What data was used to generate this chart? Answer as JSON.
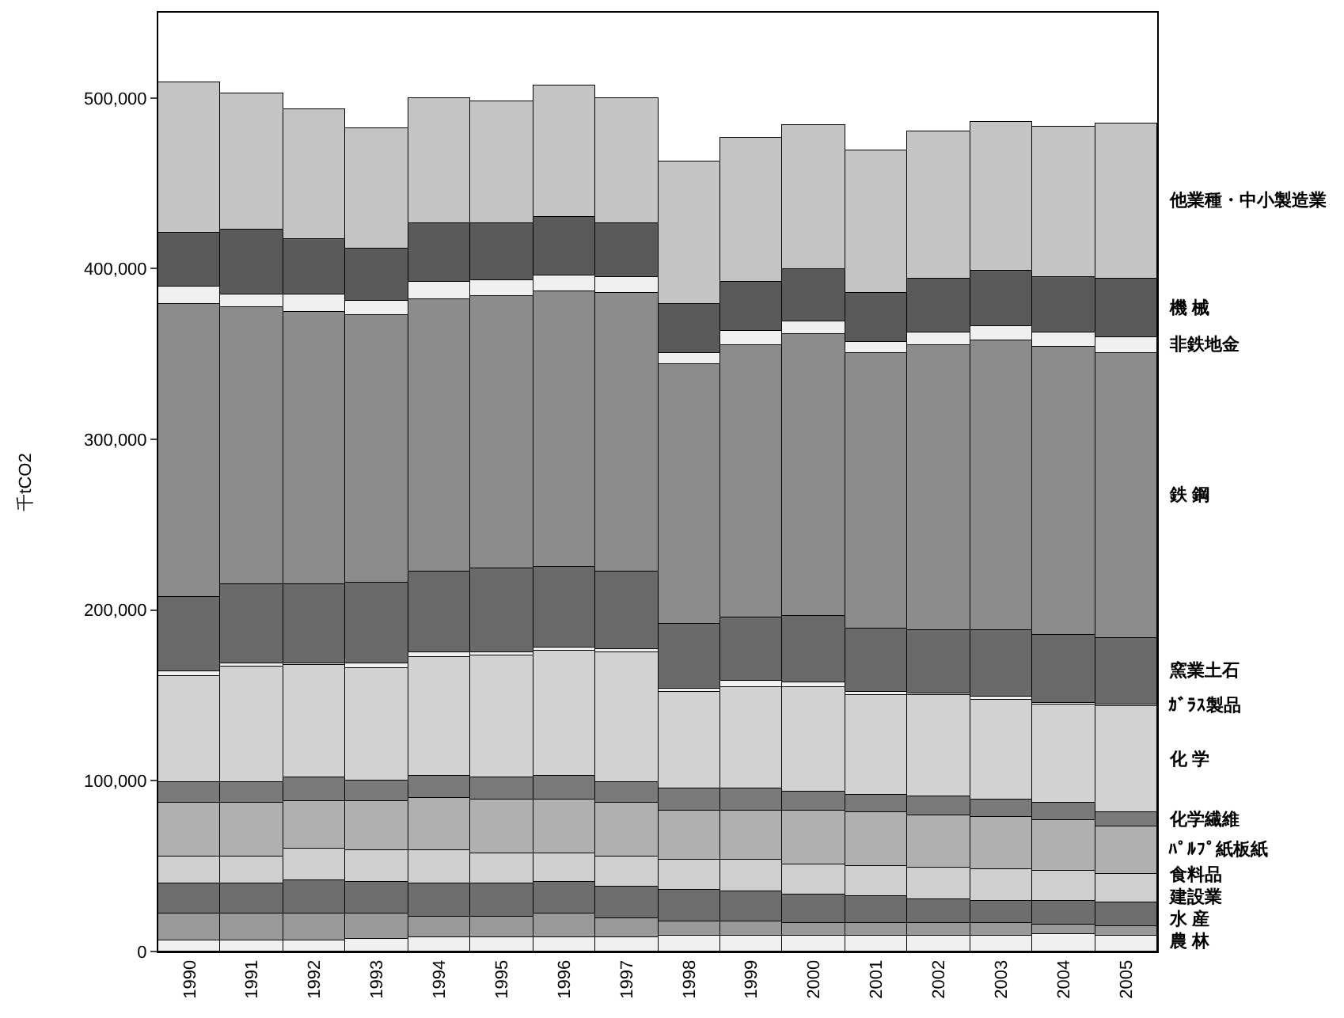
{
  "chart_data": {
    "type": "bar",
    "stacked": true,
    "ylabel": "千tCO2",
    "categories": [
      "1990",
      "1991",
      "1992",
      "1993",
      "1994",
      "1995",
      "1996",
      "1997",
      "1998",
      "1999",
      "2000",
      "2001",
      "2002",
      "2003",
      "2004",
      "2005"
    ],
    "ylim": [
      0,
      550000
    ],
    "yticks": [
      {
        "value": 0,
        "label": "0"
      },
      {
        "value": 100000,
        "label": "100,000"
      },
      {
        "value": 200000,
        "label": "200,000"
      },
      {
        "value": 300000,
        "label": "300,000"
      },
      {
        "value": 400000,
        "label": "400,000"
      },
      {
        "value": 500000,
        "label": "500,000"
      }
    ],
    "series": [
      {
        "name": "農 林",
        "color": "#f0f0f0",
        "values": [
          6500,
          6500,
          6500,
          7000,
          8000,
          8000,
          8000,
          8000,
          9500,
          9500,
          9500,
          9500,
          9500,
          9500,
          10000,
          9500
        ]
      },
      {
        "name": "水 産",
        "color": "#999999",
        "values": [
          15500,
          15500,
          16000,
          15000,
          12000,
          12000,
          14000,
          11500,
          8500,
          8500,
          7500,
          7000,
          7000,
          7000,
          6000,
          5000
        ]
      },
      {
        "name": "建設業",
        "color": "#6e6e6e",
        "values": [
          17500,
          17500,
          19000,
          19000,
          19500,
          19500,
          19000,
          18500,
          18500,
          17000,
          16000,
          16000,
          14500,
          13500,
          13500,
          14000
        ]
      },
      {
        "name": "食料品",
        "color": "#cfcfcf",
        "values": [
          16000,
          16000,
          18500,
          18000,
          19500,
          18000,
          16500,
          17500,
          17000,
          18500,
          18000,
          18000,
          18000,
          18500,
          17500,
          17000
        ]
      },
      {
        "name": "ﾊﾟﾙﾌﾟ紙板紙",
        "color": "#b0b0b0",
        "values": [
          32000,
          32000,
          28000,
          29500,
          31000,
          32000,
          32000,
          32000,
          29500,
          29500,
          31500,
          31000,
          31000,
          30000,
          30000,
          28000
        ]
      },
      {
        "name": "化学繊維",
        "color": "#7a7a7a",
        "values": [
          12000,
          12000,
          14000,
          11500,
          12500,
          12500,
          13500,
          12000,
          12500,
          12500,
          11500,
          10000,
          11000,
          11000,
          10000,
          8500
        ]
      },
      {
        "name": "化 学",
        "color": "#d2d2d2",
        "values": [
          62000,
          67500,
          65500,
          66000,
          70000,
          71500,
          73500,
          75500,
          57000,
          59500,
          61000,
          59000,
          59000,
          58000,
          58000,
          61500
        ]
      },
      {
        "name": "ｶﾞﾗｽ製品",
        "color": "#f0f0f0",
        "values": [
          3000,
          1500,
          1500,
          3000,
          3000,
          2000,
          2000,
          2500,
          1500,
          3500,
          2500,
          2000,
          1000,
          2000,
          1000,
          1500
        ]
      },
      {
        "name": "窯業土石",
        "color": "#6a6a6a",
        "values": [
          43500,
          46500,
          46000,
          47500,
          47500,
          49000,
          47000,
          45500,
          38000,
          37000,
          39500,
          37000,
          37500,
          38500,
          39500,
          38500
        ]
      },
      {
        "name": "鉄 鋼",
        "color": "#8c8c8c",
        "values": [
          171500,
          162500,
          159500,
          156000,
          159500,
          159500,
          161500,
          163000,
          152000,
          160000,
          165000,
          161000,
          167000,
          170000,
          169000,
          167500
        ]
      },
      {
        "name": "非鉄地金",
        "color": "#f0f0f0",
        "values": [
          10000,
          7000,
          10000,
          9000,
          10000,
          9000,
          9500,
          9500,
          7000,
          8500,
          7500,
          7000,
          7500,
          8000,
          8500,
          8500
        ]
      },
      {
        "name": "機 械",
        "color": "#5a5a5a",
        "values": [
          32000,
          38500,
          33000,
          30500,
          34500,
          34000,
          34000,
          31500,
          28000,
          28000,
          30500,
          28000,
          31000,
          32500,
          32500,
          35000
        ]
      },
      {
        "name": "他業種・中小製造業",
        "color": "#c4c4c4",
        "values": [
          88000,
          80000,
          76000,
          70500,
          73000,
          71500,
          76500,
          73000,
          84000,
          84500,
          84500,
          83500,
          86500,
          87500,
          88000,
          90500
        ]
      }
    ]
  }
}
